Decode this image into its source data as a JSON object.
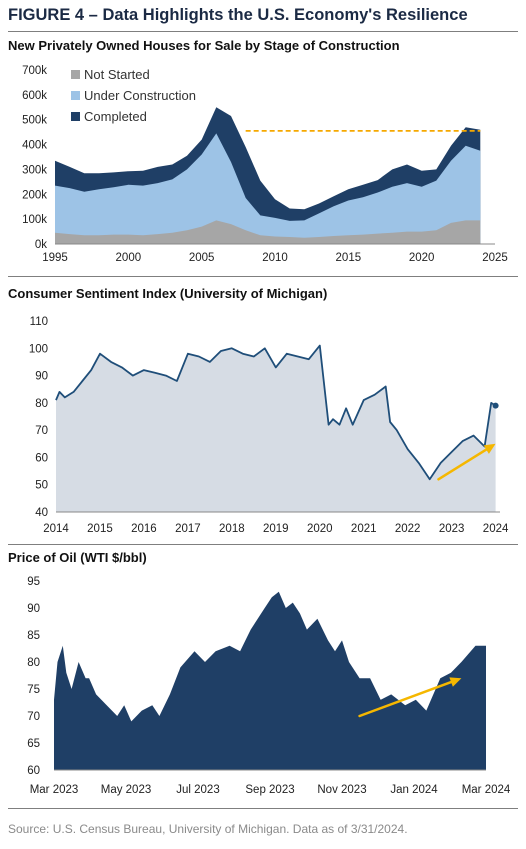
{
  "figure_title": "FIGURE 4 – Data Highlights the U.S. Economy's Resilience",
  "source": "Source: U.S. Census Bureau, University of Michigan. Data as of 3/31/2024.",
  "colors": {
    "not_started": "#a6a6a6",
    "under_construction": "#9dc3e6",
    "completed": "#1f3f66",
    "sentiment_line": "#1f4e79",
    "sentiment_fill": "#d6dce4",
    "oil_fill": "#1f3f66",
    "arrow": "#f5b700",
    "reference_line": "#f5a800"
  },
  "chart_data": [
    {
      "id": "housing",
      "type": "area",
      "stacked": true,
      "title": "New Privately Owned Houses for Sale by Stage of Construction",
      "x": [
        1995,
        1996,
        1997,
        1998,
        1999,
        2000,
        2001,
        2002,
        2003,
        2004,
        2005,
        2006,
        2007,
        2008,
        2009,
        2010,
        2011,
        2012,
        2013,
        2014,
        2015,
        2016,
        2017,
        2018,
        2019,
        2020,
        2021,
        2022,
        2023,
        2024
      ],
      "series": [
        {
          "name": "Not Started",
          "values": [
            45,
            40,
            35,
            35,
            38,
            38,
            35,
            40,
            45,
            55,
            70,
            95,
            80,
            55,
            35,
            30,
            28,
            25,
            28,
            32,
            35,
            38,
            42,
            45,
            50,
            50,
            55,
            85,
            95,
            95
          ]
        },
        {
          "name": "Under Construction",
          "values": [
            190,
            185,
            175,
            185,
            190,
            200,
            200,
            205,
            215,
            245,
            290,
            350,
            250,
            130,
            80,
            75,
            65,
            70,
            95,
            120,
            140,
            150,
            165,
            185,
            195,
            180,
            200,
            250,
            300,
            280
          ]
        },
        {
          "name": "Completed",
          "values": [
            100,
            85,
            75,
            65,
            60,
            55,
            60,
            65,
            60,
            55,
            60,
            105,
            185,
            205,
            140,
            75,
            50,
            45,
            40,
            40,
            45,
            50,
            50,
            70,
            75,
            65,
            45,
            60,
            75,
            85
          ]
        }
      ],
      "xticks": [
        "1995",
        "2000",
        "2005",
        "2010",
        "2015",
        "2020",
        "2025"
      ],
      "yticks": [
        "0k",
        "100k",
        "200k",
        "300k",
        "400k",
        "500k",
        "600k",
        "700k"
      ],
      "xlim": [
        1995,
        2025
      ],
      "ylim": [
        0,
        700
      ],
      "reference_line": {
        "y": 455,
        "x_start": 2008,
        "x_end": 2024
      },
      "legend": "top-left"
    },
    {
      "id": "sentiment",
      "type": "area",
      "title": "Consumer Sentiment Index (University of Michigan)",
      "x": [
        2014.0,
        2014.08,
        2014.2,
        2014.4,
        2014.6,
        2014.8,
        2015.0,
        2015.25,
        2015.5,
        2015.75,
        2016.0,
        2016.25,
        2016.5,
        2016.75,
        2017.0,
        2017.25,
        2017.5,
        2017.75,
        2018.0,
        2018.25,
        2018.5,
        2018.75,
        2019.0,
        2019.25,
        2019.5,
        2019.75,
        2020.0,
        2020.2,
        2020.3,
        2020.45,
        2020.6,
        2020.75,
        2021.0,
        2021.25,
        2021.5,
        2021.6,
        2021.75,
        2022.0,
        2022.25,
        2022.5,
        2022.75,
        2023.0,
        2023.25,
        2023.5,
        2023.75,
        2023.9,
        2024.0
      ],
      "values": [
        81,
        84,
        82,
        84,
        88,
        92,
        98,
        95,
        93,
        90,
        92,
        91,
        90,
        88,
        98,
        97,
        95,
        99,
        100,
        98,
        97,
        100,
        93,
        98,
        97,
        96,
        101,
        72,
        74,
        72,
        78,
        72,
        81,
        83,
        86,
        73,
        70,
        63,
        58,
        52,
        58,
        62,
        66,
        68,
        64,
        80,
        79
      ],
      "xticks": [
        "2014",
        "2015",
        "2016",
        "2017",
        "2018",
        "2019",
        "2020",
        "2021",
        "2022",
        "2023",
        "2024"
      ],
      "yticks": [
        "40",
        "50",
        "60",
        "70",
        "80",
        "90",
        "100",
        "110"
      ],
      "xlim": [
        2014,
        2024.1
      ],
      "ylim": [
        40,
        110
      ],
      "trend_arrow": {
        "from": [
          2022.7,
          52
        ],
        "to": [
          2024.0,
          65
        ]
      }
    },
    {
      "id": "oil",
      "type": "area",
      "title": "Price of Oil (WTI $/bbl)",
      "x": [
        0.0,
        0.1,
        0.25,
        0.35,
        0.5,
        0.7,
        0.9,
        1.0,
        1.2,
        1.5,
        1.8,
        2.0,
        2.2,
        2.5,
        2.8,
        3.0,
        3.3,
        3.6,
        4.0,
        4.3,
        4.6,
        5.0,
        5.3,
        5.6,
        6.0,
        6.2,
        6.4,
        6.6,
        6.8,
        7.0,
        7.2,
        7.5,
        7.8,
        8.0,
        8.2,
        8.4,
        8.7,
        9.0,
        9.3,
        9.6,
        10.0,
        10.3,
        10.6,
        11.0,
        11.3,
        11.6,
        12.0,
        12.3
      ],
      "values": [
        73,
        80,
        83,
        78,
        75,
        80,
        77,
        77,
        74,
        72,
        70,
        72,
        69,
        71,
        72,
        70,
        74,
        79,
        82,
        80,
        82,
        83,
        82,
        86,
        90,
        92,
        93,
        90,
        91,
        89,
        86,
        88,
        84,
        82,
        84,
        80,
        77,
        77,
        73,
        74,
        72,
        73,
        71,
        77,
        78,
        80,
        83,
        83
      ],
      "xticks": [
        "Mar 2023",
        "May 2023",
        "Jul 2023",
        "Sep 2023",
        "Nov 2023",
        "Jan 2024",
        "Mar 2024"
      ],
      "yticks": [
        "60",
        "65",
        "70",
        "75",
        "80",
        "85",
        "90",
        "95"
      ],
      "xlim": [
        0,
        12.3
      ],
      "ylim": [
        60,
        95
      ],
      "trend_arrow": {
        "from": [
          8.7,
          70
        ],
        "to": [
          11.6,
          77
        ]
      }
    }
  ]
}
